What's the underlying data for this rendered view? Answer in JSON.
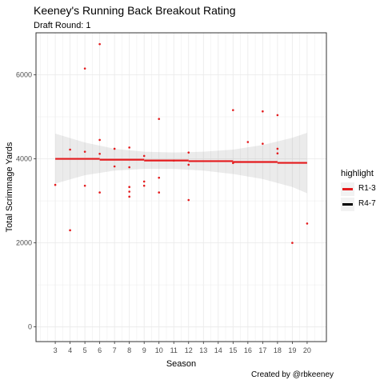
{
  "chart_data": {
    "type": "scatter",
    "title": "Keeney's Running Back Breakout Rating",
    "subtitle": "Draft Round: 1",
    "caption": "Created by @rbkeeney",
    "xlabel": "Season",
    "ylabel": "Total Scrimmage Yards",
    "xlim": [
      1.7,
      21.3
    ],
    "ylim": [
      -350,
      7000
    ],
    "x_ticks": [
      3,
      4,
      5,
      6,
      7,
      8,
      9,
      10,
      11,
      12,
      13,
      14,
      15,
      16,
      17,
      18,
      19,
      20
    ],
    "y_ticks": [
      0,
      2000,
      4000,
      6000
    ],
    "y_tick_labels": [
      "0",
      "2000",
      "4000",
      "6000"
    ],
    "grid": true,
    "point_color": "#e41a1c",
    "points": [
      {
        "x": 3,
        "y": 3380
      },
      {
        "x": 4,
        "y": 4220
      },
      {
        "x": 4,
        "y": 2300
      },
      {
        "x": 5,
        "y": 6150
      },
      {
        "x": 5,
        "y": 4170
      },
      {
        "x": 5,
        "y": 3360
      },
      {
        "x": 6,
        "y": 6730
      },
      {
        "x": 6,
        "y": 4450
      },
      {
        "x": 6,
        "y": 4120
      },
      {
        "x": 6,
        "y": 3200
      },
      {
        "x": 7,
        "y": 4240
      },
      {
        "x": 7,
        "y": 3820
      },
      {
        "x": 8,
        "y": 4270
      },
      {
        "x": 8,
        "y": 3800
      },
      {
        "x": 8,
        "y": 3330
      },
      {
        "x": 8,
        "y": 3220
      },
      {
        "x": 8,
        "y": 3100
      },
      {
        "x": 9,
        "y": 4070
      },
      {
        "x": 9,
        "y": 3460
      },
      {
        "x": 9,
        "y": 3360
      },
      {
        "x": 10,
        "y": 4950
      },
      {
        "x": 10,
        "y": 3550
      },
      {
        "x": 10,
        "y": 3200
      },
      {
        "x": 11,
        "y": 3960
      },
      {
        "x": 12,
        "y": 4150
      },
      {
        "x": 12,
        "y": 3860
      },
      {
        "x": 12,
        "y": 3020
      },
      {
        "x": 15,
        "y": 5160
      },
      {
        "x": 15,
        "y": 3900
      },
      {
        "x": 16,
        "y": 4400
      },
      {
        "x": 17,
        "y": 5130
      },
      {
        "x": 17,
        "y": 4360
      },
      {
        "x": 18,
        "y": 5040
      },
      {
        "x": 18,
        "y": 4240
      },
      {
        "x": 18,
        "y": 4130
      },
      {
        "x": 19,
        "y": 2000
      },
      {
        "x": 20,
        "y": 2460
      }
    ],
    "trend": {
      "color": "#e41a1c",
      "steps": [
        {
          "x0": 3,
          "x1": 6,
          "y": 4000
        },
        {
          "x0": 6,
          "x1": 9,
          "y": 3980
        },
        {
          "x0": 9,
          "x1": 12,
          "y": 3960
        },
        {
          "x0": 12,
          "x1": 15,
          "y": 3945
        },
        {
          "x0": 15,
          "x1": 18,
          "y": 3925
        },
        {
          "x0": 18,
          "x1": 20,
          "y": 3905
        }
      ],
      "band": [
        {
          "x": 3,
          "lo": 3410,
          "hi": 4600
        },
        {
          "x": 5,
          "lo": 3610,
          "hi": 4390
        },
        {
          "x": 7,
          "lo": 3720,
          "hi": 4240
        },
        {
          "x": 9,
          "lo": 3760,
          "hi": 4170
        },
        {
          "x": 11,
          "lo": 3760,
          "hi": 4150
        },
        {
          "x": 13,
          "lo": 3720,
          "hi": 4170
        },
        {
          "x": 15,
          "lo": 3640,
          "hi": 4220
        },
        {
          "x": 17,
          "lo": 3520,
          "hi": 4330
        },
        {
          "x": 19,
          "lo": 3330,
          "hi": 4500
        },
        {
          "x": 20,
          "lo": 3180,
          "hi": 4620
        }
      ]
    },
    "legend": {
      "title": "highlight",
      "placement": "right",
      "items": [
        {
          "label": "R1-3",
          "color": "#e41a1c"
        },
        {
          "label": "R4-7",
          "color": "#000000"
        }
      ]
    }
  }
}
